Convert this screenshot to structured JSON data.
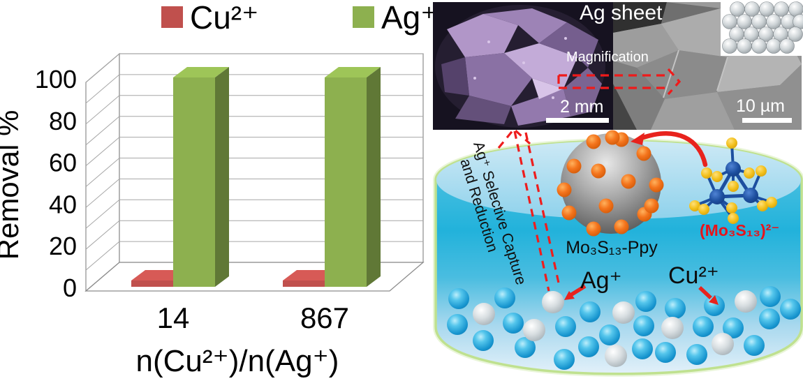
{
  "figure": {
    "background": "#ffffff"
  },
  "chart_data": {
    "type": "bar",
    "projection": "3d",
    "title": "",
    "categories": [
      "14",
      "867"
    ],
    "series": [
      {
        "name": "Cu²⁺",
        "color": "#c0504d",
        "values": [
          3,
          3
        ]
      },
      {
        "name": "Ag⁺",
        "color": "#8db04f",
        "values": [
          100,
          100
        ]
      }
    ],
    "xlabel": "n(Cu²⁺)/n(Ag⁺)",
    "ylabel": "Removal %",
    "ylim": [
      0,
      100
    ],
    "yticks": [
      0,
      20,
      40,
      60,
      80,
      100
    ],
    "grid_step": 10,
    "grid": true,
    "legend_position": "top"
  },
  "sem_panel": {
    "title": "Ag sheet",
    "magnification_label": "Magnification",
    "left_scale_bar": "2 mm",
    "right_scale_bar": "10 µm"
  },
  "schematic": {
    "sphere_label": "Mo₃S₁₃-Ppy",
    "cluster_label": "(Mo₃S₁₃)²⁻",
    "silver_ion_label": "Ag⁺",
    "copper_ion_label": "Cu²⁺",
    "process_caption_line1": "Ag⁺ Selective Capture",
    "process_caption_line2": "and Reduction"
  },
  "colors": {
    "accent_red": "#e8231d",
    "water_top": "#8ed0e9",
    "water_mid": "#22b2db",
    "water_bottom": "#e6f2fa",
    "beaker_rim": "#bfe18f",
    "copper_ion": "#1e9ed6",
    "silver_ion": "#c2cacd",
    "mo_atom": "#1d4f9f",
    "s_atom": "#f3c11d",
    "ppy_dot_orange": "#f4741c",
    "ppy_sphere_gray": "#7a7a7a"
  }
}
